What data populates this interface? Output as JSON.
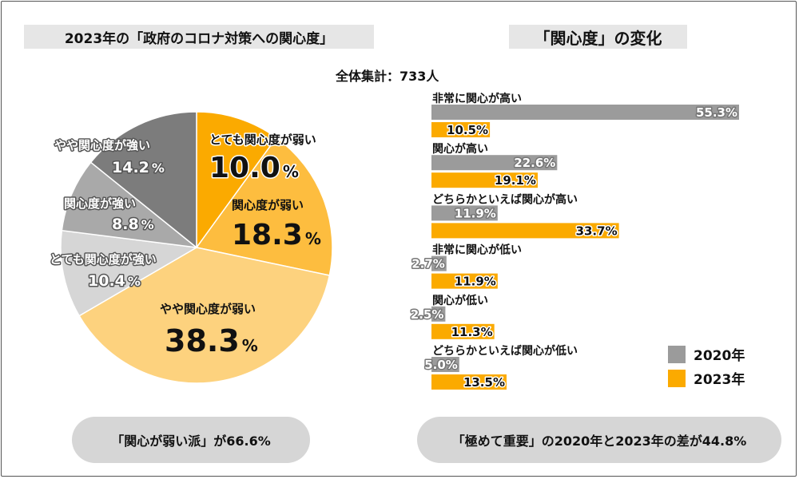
{
  "pie_title": "2023年の「政府のコロナ対策への関心度」",
  "bar_title": "「関心度」の変化",
  "total_label": "全体集計：733人",
  "bottom_left": "「関心が弱い派」が66.6%",
  "bottom_right": "「極めて重要」の2020年と2023年の差が44.8%",
  "colors": {
    "c2020": "#9b9b9b",
    "c2023": "#fbaa00"
  },
  "chart_data": [
    {
      "type": "pie",
      "title": "2023年の「政府のコロナ対策への関心度」",
      "slices": [
        {
          "label": "とても関心度が弱い",
          "value": 10.0,
          "value_text": "10.0",
          "color": "#fbaa00"
        },
        {
          "label": "関心度が弱い",
          "value": 18.3,
          "value_text": "18.3",
          "color": "#fdbd3f"
        },
        {
          "label": "やや関心度が弱い",
          "value": 38.3,
          "value_text": "38.3",
          "color": "#fdd27e"
        },
        {
          "label": "とても関心度が強い",
          "value": 10.4,
          "value_text": "10.4",
          "color": "#d6d6d6"
        },
        {
          "label": "関心度が強い",
          "value": 8.8,
          "value_text": "8.8",
          "color": "#a9a9a9"
        },
        {
          "label": "やや関心度が強い",
          "value": 14.2,
          "value_text": "14.2",
          "color": "#7c7c7c"
        }
      ]
    },
    {
      "type": "bar",
      "orientation": "horizontal",
      "title": "「関心度」の変化",
      "categories": [
        "非常に関心が高い",
        "関心が高い",
        "どちらかといえば関心が高い",
        "非常に関心が低い",
        "関心が低い",
        "どちらかといえば関心が低い"
      ],
      "series": [
        {
          "name": "2020年",
          "values": [
            55.3,
            22.6,
            11.9,
            2.7,
            2.5,
            5.0
          ],
          "labels": [
            "55.3%",
            "22.6%",
            "11.9%",
            "2.7%",
            "2.5%",
            "5.0%"
          ]
        },
        {
          "name": "2023年",
          "values": [
            10.5,
            19.1,
            33.7,
            11.9,
            11.3,
            13.5
          ],
          "labels": [
            "10.5%",
            "19.1%",
            "33.7%",
            "11.9%",
            "11.3%",
            "13.5%"
          ]
        }
      ],
      "legend_position": "bottom-right",
      "xlim": [
        0,
        60
      ]
    }
  ]
}
